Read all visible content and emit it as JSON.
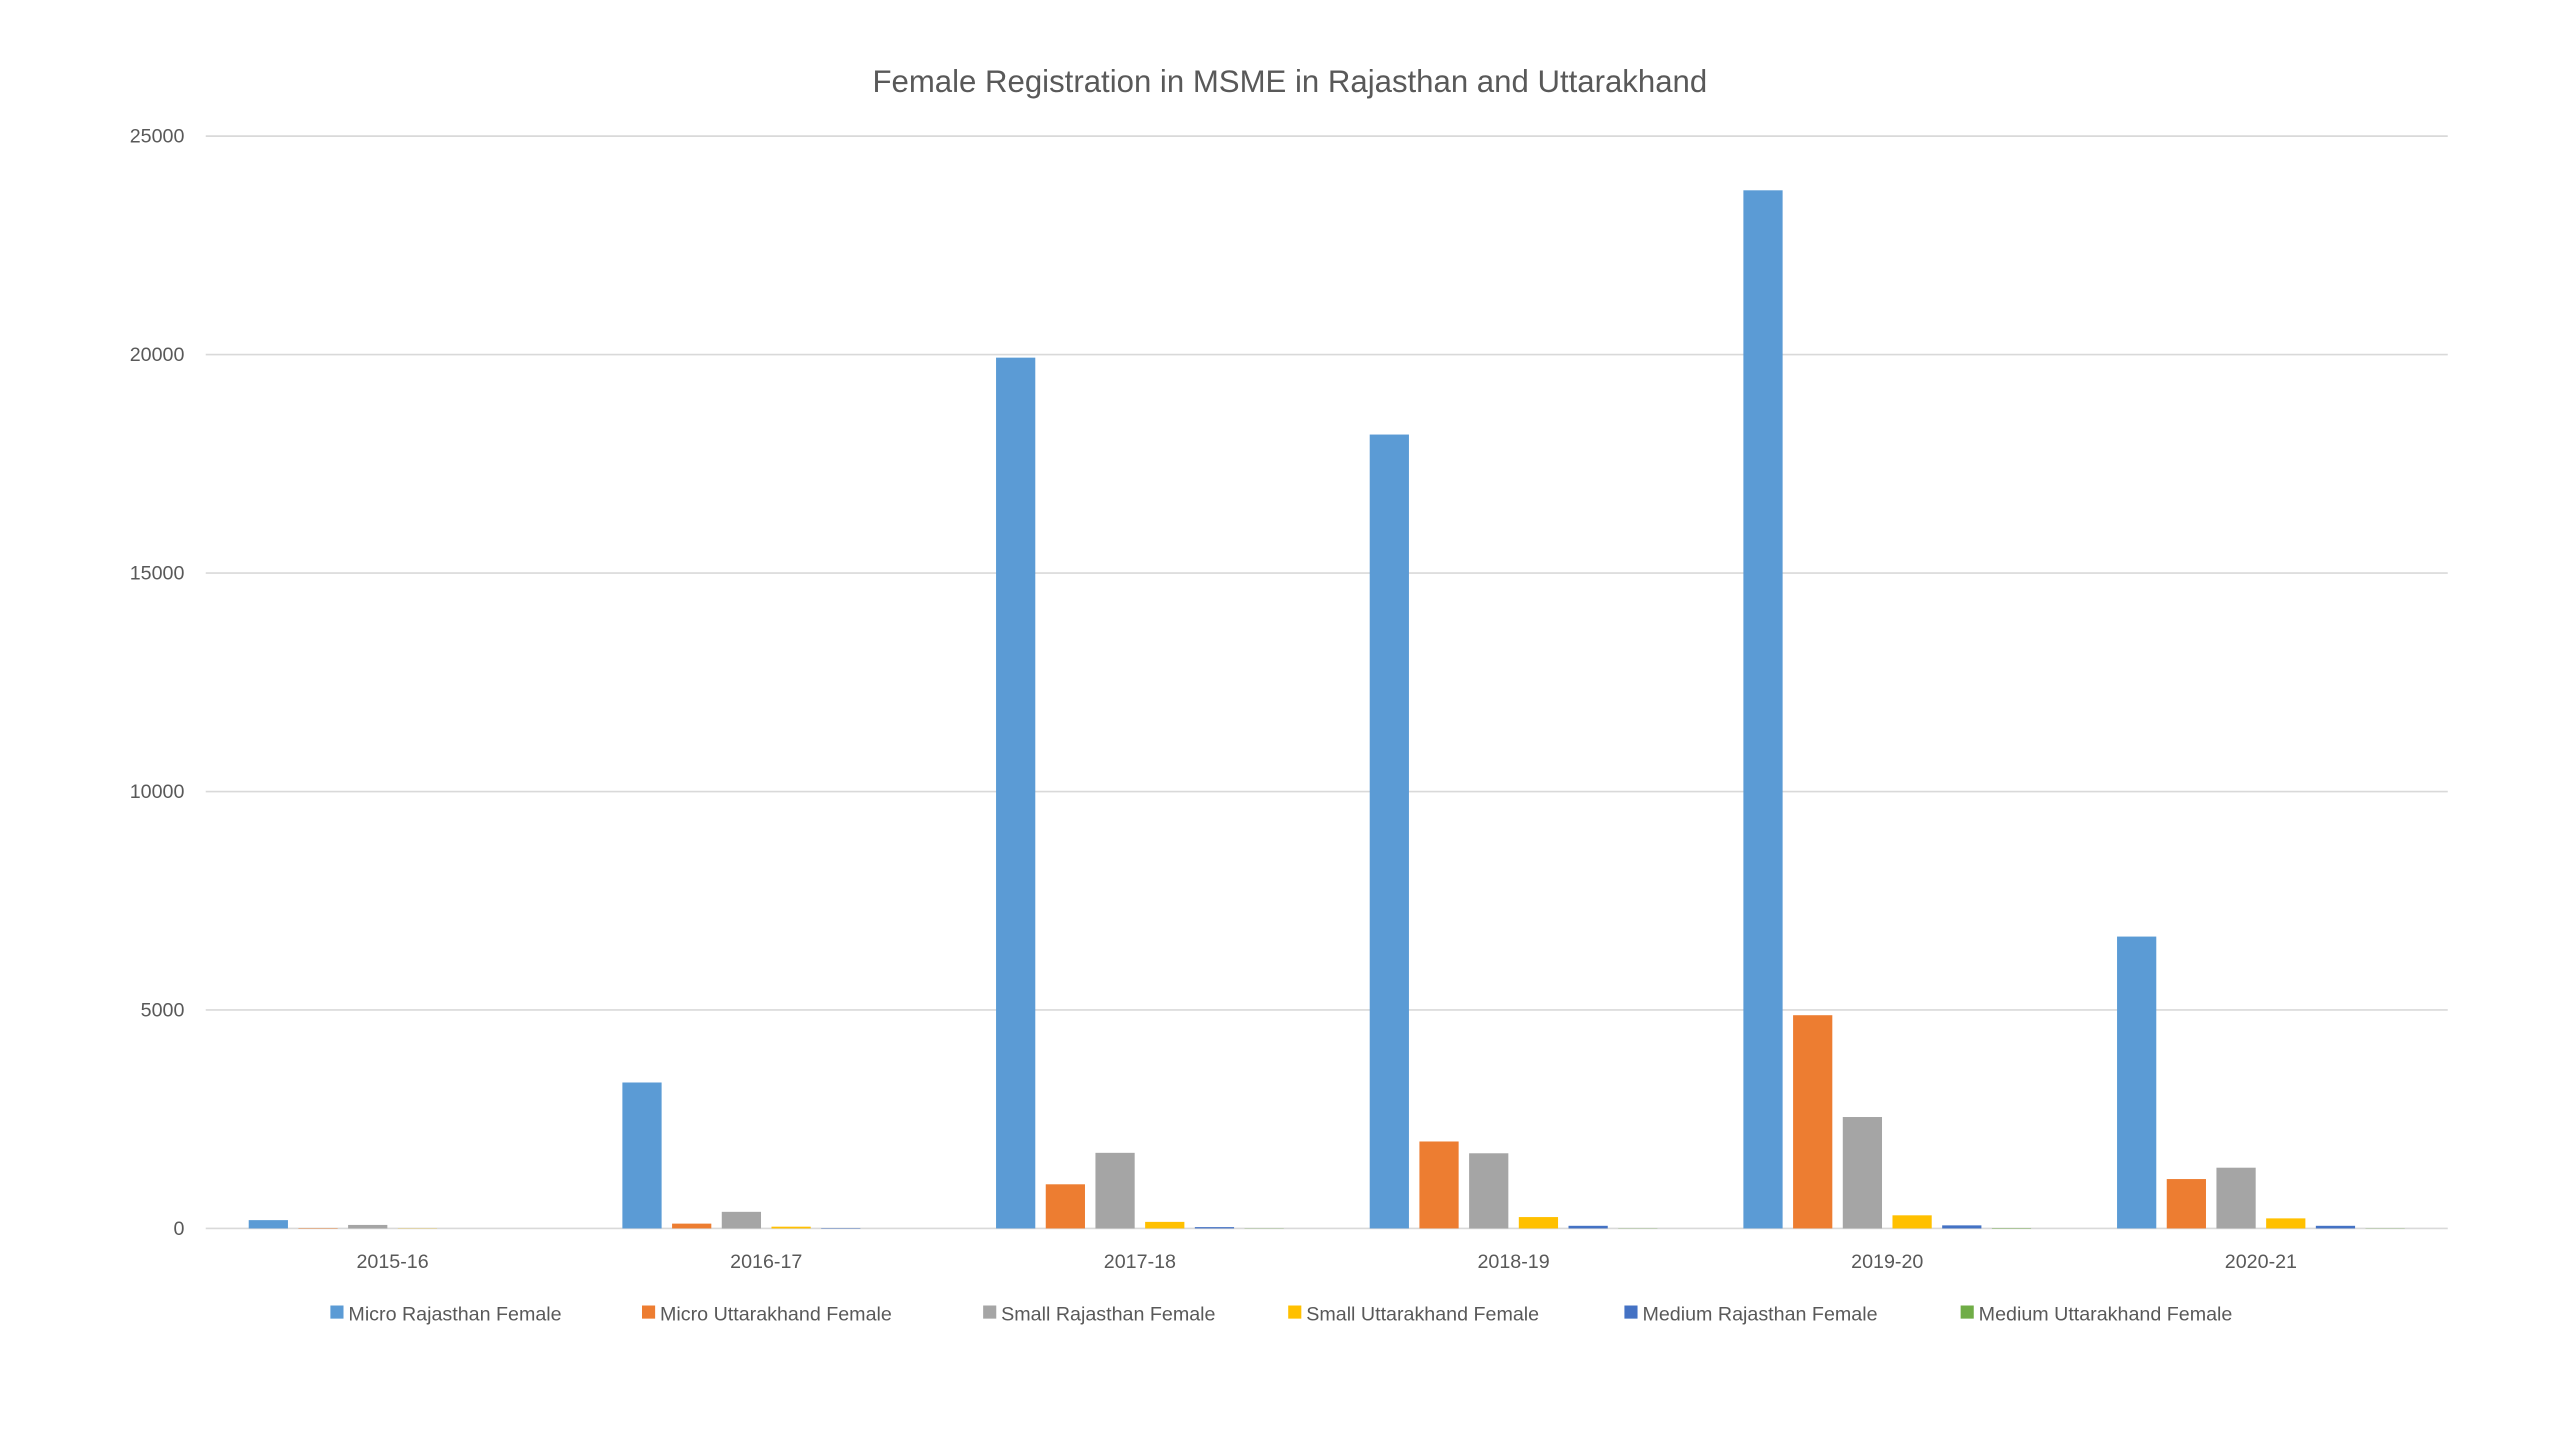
{
  "chart_data": {
    "type": "bar",
    "title": "Female Registration in MSME in Rajasthan and Uttarakhand",
    "xlabel": "",
    "ylabel": "",
    "categories": [
      "2015-16",
      "2016-17",
      "2017-18",
      "2018-19",
      "2019-20",
      "2020-21"
    ],
    "ylim": [
      0,
      25000
    ],
    "yticks": [
      0,
      5000,
      10000,
      15000,
      20000,
      25000
    ],
    "grid": true,
    "legend_position": "bottom",
    "series": [
      {
        "name": "Micro Rajasthan Female",
        "color": "#5B9BD5",
        "values": [
          190,
          3340,
          19930,
          18170,
          23760,
          6680
        ]
      },
      {
        "name": "Micro Uttarakhand Female",
        "color": "#ED7D31",
        "values": [
          10,
          110,
          1010,
          1990,
          4880,
          1130
        ]
      },
      {
        "name": "Small Rajasthan Female",
        "color": "#A5A5A5",
        "values": [
          80,
          380,
          1730,
          1720,
          2550,
          1390
        ]
      },
      {
        "name": "Small Uttarakhand Female",
        "color": "#FFC000",
        "values": [
          5,
          40,
          150,
          260,
          300,
          230
        ]
      },
      {
        "name": "Medium Rajasthan Female",
        "color": "#4472C4",
        "values": [
          0,
          10,
          30,
          60,
          70,
          60
        ]
      },
      {
        "name": "Medium Uttarakhand Female",
        "color": "#70AD47",
        "values": [
          0,
          0,
          5,
          5,
          10,
          5
        ]
      }
    ]
  }
}
